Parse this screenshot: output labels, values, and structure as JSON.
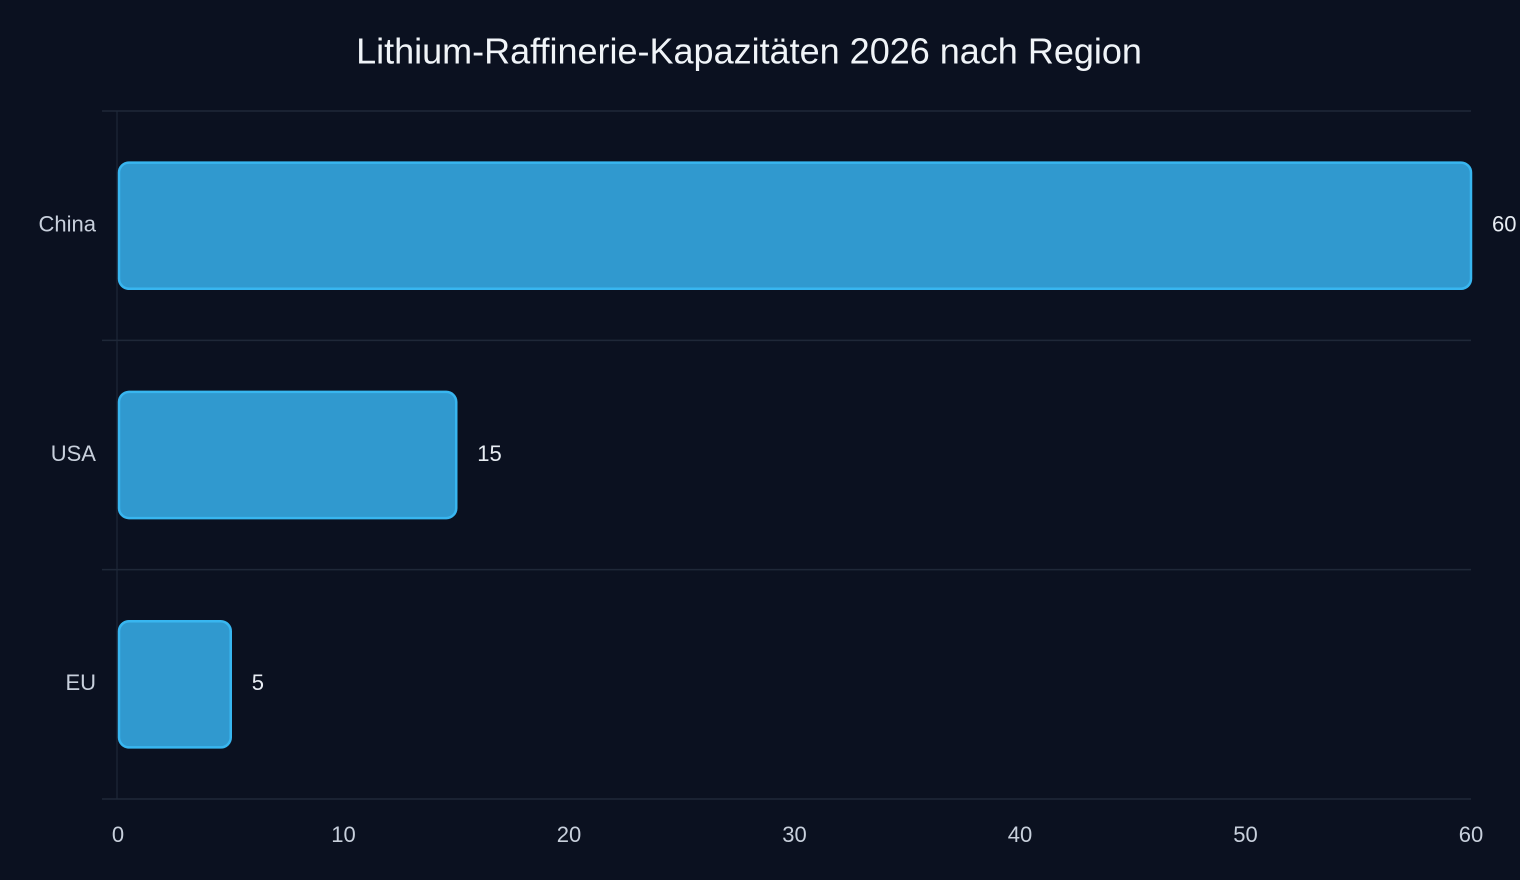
{
  "chart_data": {
    "type": "hbar",
    "title": "Lithium-Raffinerie-Kapazitäten 2026 nach Region",
    "categories": [
      "China",
      "USA",
      "EU"
    ],
    "values": [
      60,
      15,
      5
    ],
    "color": "#3099cf",
    "edge_color": "#38b6f0",
    "xlim": [
      0,
      60
    ],
    "xticks": [
      0,
      10,
      20,
      30,
      40,
      50,
      60
    ]
  }
}
